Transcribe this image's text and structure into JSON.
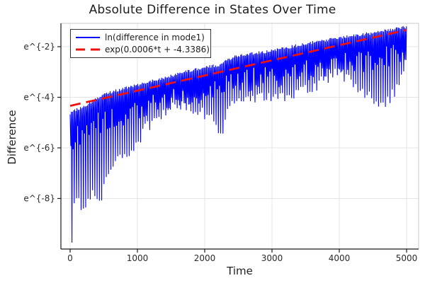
{
  "title": "Absolute Difference in States Over Time",
  "axes": {
    "xlabel": "Time",
    "ylabel": "Difference",
    "x_ticks": [
      {
        "value": 0,
        "label": "0"
      },
      {
        "value": 1000,
        "label": "1000"
      },
      {
        "value": 2000,
        "label": "2000"
      },
      {
        "value": 3000,
        "label": "3000"
      },
      {
        "value": 4000,
        "label": "4000"
      },
      {
        "value": 5000,
        "label": "5000"
      }
    ],
    "y_ticks": [
      {
        "ln": -2,
        "label": "e^{-2}"
      },
      {
        "ln": -4,
        "label": "e^{-4}"
      },
      {
        "ln": -6,
        "label": "e^{-6}"
      },
      {
        "ln": -8,
        "label": "e^{-8}"
      }
    ]
  },
  "chart_data": {
    "type": "line",
    "title": "Absolute Difference in States Over Time",
    "xlabel": "Time",
    "ylabel": "Difference",
    "x_range": [
      0,
      5000
    ],
    "y_scale": "natural-log (labels are e^{n})",
    "ylim_ln": [
      -10.0,
      -1.08
    ],
    "grid": true,
    "legend_position": "top-left",
    "colors": {
      "signal": "#0000ff",
      "fit": "#ee1111",
      "grid": "#e4e4e4",
      "spine": "#1a1a1a",
      "frame": "#c9c9c9"
    },
    "series": [
      {
        "name": "ln(difference in mode1)",
        "color": "#0000ff",
        "style": "solid",
        "description": "rapidly oscillating log-difference; upper envelope rises smoothly, downward spikes of varying depth at zero-crossings",
        "upper_envelope_ln": [
          [
            0,
            -4.63
          ],
          [
            250,
            -4.28
          ],
          [
            480,
            -3.9
          ],
          [
            750,
            -3.68
          ],
          [
            1000,
            -3.51
          ],
          [
            1250,
            -3.33
          ],
          [
            1480,
            -3.17
          ],
          [
            1750,
            -2.97
          ],
          [
            2000,
            -2.81
          ],
          [
            2220,
            -2.73
          ],
          [
            2430,
            -2.39
          ],
          [
            2700,
            -2.28
          ],
          [
            3000,
            -2.17
          ],
          [
            3480,
            -1.89
          ],
          [
            4000,
            -1.64
          ],
          [
            4540,
            -1.44
          ],
          [
            5000,
            -1.22
          ]
        ],
        "lower_envelope_ln": [
          [
            0,
            -9.9
          ],
          [
            30,
            -9.8
          ],
          [
            70,
            -8.0
          ],
          [
            150,
            -8.2
          ],
          [
            200,
            -8.6
          ],
          [
            300,
            -7.8
          ],
          [
            450,
            -8.1
          ],
          [
            550,
            -7.2
          ],
          [
            700,
            -6.6
          ],
          [
            850,
            -6.2
          ],
          [
            1000,
            -5.75
          ],
          [
            1150,
            -5.15
          ],
          [
            1300,
            -4.7
          ],
          [
            1500,
            -4.4
          ],
          [
            1700,
            -4.35
          ],
          [
            1900,
            -4.5
          ],
          [
            2050,
            -4.7
          ],
          [
            2150,
            -4.95
          ],
          [
            2240,
            -5.45
          ],
          [
            2330,
            -4.75
          ],
          [
            2450,
            -4.2
          ],
          [
            2600,
            -4.0
          ],
          [
            2800,
            -3.95
          ],
          [
            3000,
            -4.05
          ],
          [
            3200,
            -4.0
          ],
          [
            3400,
            -3.85
          ],
          [
            3600,
            -3.6
          ],
          [
            3800,
            -3.25
          ],
          [
            3950,
            -3.0
          ],
          [
            4100,
            -3.2
          ],
          [
            4250,
            -3.6
          ],
          [
            4400,
            -3.95
          ],
          [
            4550,
            -4.15
          ],
          [
            4700,
            -4.25
          ],
          [
            4800,
            -3.9
          ],
          [
            4900,
            -3.2
          ],
          [
            5000,
            -2.4
          ]
        ],
        "oscillation": {
          "spike_interval_t": 34,
          "shallow_dip_mean": 0.55,
          "shallow_dip_var": 0.95,
          "depth_jitter": 0.5,
          "top_jitter": 0.12
        }
      },
      {
        "name": "exp(0.0006*t + -4.3386)",
        "color": "#ee1111",
        "style": "dashed",
        "fit": {
          "slope": 0.0006,
          "intercept": -4.3386
        },
        "endpoints_ln": [
          [
            0,
            -4.3386
          ],
          [
            5000,
            -1.3386
          ]
        ]
      }
    ]
  }
}
